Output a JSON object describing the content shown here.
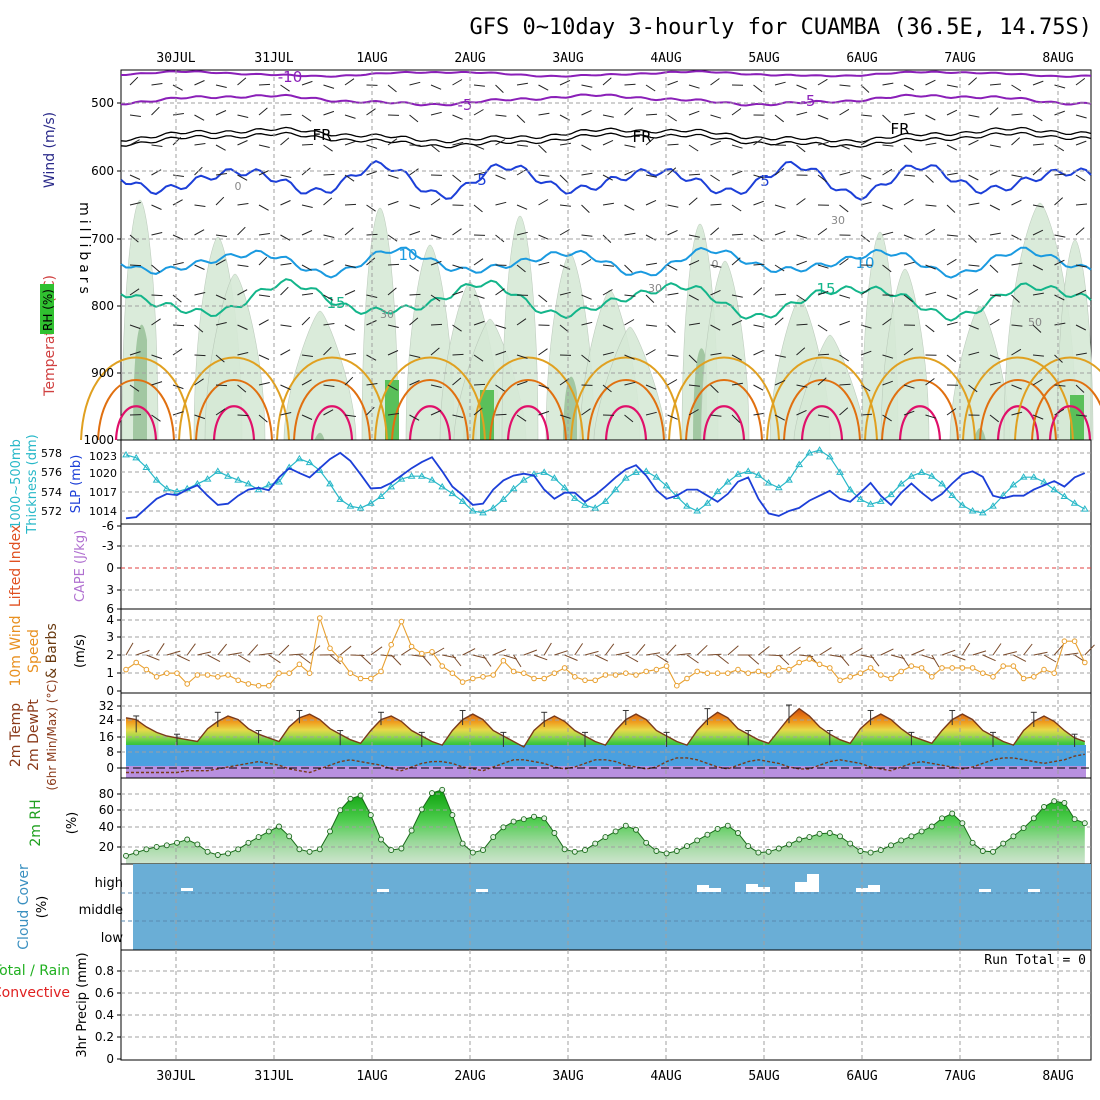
{
  "title": "GFS 0~10day 3-hourly for CUAMBA (36.5E, 14.75S)",
  "dates": [
    "30JUL",
    "31JUL",
    "1AUG",
    "2AUG",
    "3AUG",
    "4AUG",
    "5AUG",
    "6AUG",
    "7AUG",
    "8AUG"
  ],
  "colors": {
    "wind_m10": "#8a1fb8",
    "wind_m5": "#8a1fb8",
    "freeze": "#000000",
    "t5": "#1c3fd8",
    "t10": "#1a9ae0",
    "t15": "#13b58a",
    "t20": "#e0a020",
    "t25": "#e07010",
    "t30": "#e0106a",
    "rh_fill": "#cfe5cf",
    "thickness": "#28b8c8",
    "slp": "#1c3fd8",
    "wind10": "#e8a030",
    "temp": "#8a3a1a",
    "dew": "#8a3a1a",
    "rh2m": "#2a9a2a",
    "cloud": "#6aaed6",
    "grid": "#9a9a9a"
  },
  "panels": {
    "upper": {
      "ylabel_parts": [
        "Wind (m/s)",
        "Temperature (°C)",
        "RH (%)"
      ],
      "ylabel_right": "millibars",
      "yticks": [
        "500",
        "600",
        "700",
        "800",
        "900",
        "1000"
      ],
      "contour_labels": [
        "-10",
        "-5",
        "-5",
        "FR",
        "FR",
        "FR",
        "5",
        "5",
        "10",
        "10",
        "15",
        "15",
        "30",
        "30",
        "30",
        "50",
        "0",
        "0"
      ]
    },
    "thickness": {
      "ylabel1": "1000~500mb",
      "ylabel2": "Thickness (dm)",
      "ylabel3": "SLP (mb)",
      "left_ticks": [
        "578",
        "576",
        "574",
        "572"
      ],
      "right_ticks": [
        "1023",
        "1020",
        "1017",
        "1014"
      ]
    },
    "cape": {
      "ylabel1": "Lifted Index",
      "ylabel2": "CAPE (J/kg)",
      "ticks": [
        "-6",
        "-3",
        "0",
        "3",
        "6"
      ]
    },
    "wind10": {
      "ylabel1": "10m Wind",
      "ylabel2": "Speed",
      "ylabel3": "& Barbs",
      "ylabel4": "(m/s)",
      "ticks": [
        "4",
        "3",
        "2",
        "1",
        "0"
      ]
    },
    "temp": {
      "ylabel1": "2m Temp",
      "ylabel2": "2m DewPt",
      "ylabel3": "(6hr Min/Max) (°C)",
      "ticks": [
        "32",
        "24",
        "16",
        "8",
        "0"
      ]
    },
    "rh": {
      "ylabel1": "2m RH",
      "ylabel2": "(%)",
      "ticks": [
        "80",
        "60",
        "40",
        "20"
      ]
    },
    "cloud": {
      "ylabel1": "Cloud Cover",
      "ylabel2": "(%)",
      "levels": [
        "high",
        "middle",
        "low"
      ]
    },
    "precip": {
      "ylabel1": "Total / Rain",
      "ylabel2": "Convective",
      "ylabel3": "3hr Precip (mm)",
      "ticks": [
        "0.8",
        "0.6",
        "0.4",
        "0.2",
        "0"
      ],
      "run_total": "Run Total = 0"
    }
  },
  "chart_data": [
    {
      "type": "line",
      "title": "1000~500mb Thickness (dm)",
      "x_step_hours": 3,
      "series": [
        {
          "name": "1000~500mb Thickness (dm)",
          "values": [
            577.8,
            577.5,
            576.5,
            575.2,
            574.3,
            574.0,
            574.3,
            574.8,
            575.3,
            576.1,
            575.6,
            575.2,
            574.8,
            574.2,
            574.7,
            575.0,
            576.5,
            577.4,
            577.0,
            576.2,
            574.8,
            573.2,
            572.5,
            572.3,
            572.8,
            573.5,
            574.5,
            575.3,
            575.6,
            575.6,
            575.2,
            574.5,
            573.8,
            573.0,
            572.0,
            571.8,
            572.3,
            573.2,
            574.3,
            575.2,
            575.8,
            576.0,
            575.4,
            574.4,
            573.3,
            572.6,
            572.3,
            573.0,
            574.2,
            575.4,
            576.0,
            576.1,
            575.5,
            574.6,
            573.5,
            572.5,
            572.0,
            572.8,
            574.0,
            575.0,
            575.8,
            576.1,
            575.7,
            574.9,
            574.4,
            575.2,
            576.8,
            578.0,
            578.3,
            577.6,
            576.0,
            574.2,
            573.2,
            572.7,
            573.0,
            573.7,
            574.8,
            575.6,
            576.0,
            575.6,
            574.8,
            573.6,
            572.6,
            572.0,
            571.8,
            572.5,
            573.6,
            574.7,
            575.5,
            575.5,
            575.0,
            574.2,
            573.5,
            572.8,
            572.2
          ]
        }
      ]
    },
    {
      "type": "line",
      "title": "SLP (mb)",
      "x_step_hours": 3,
      "series": [
        {
          "name": "SLP (mb)",
          "values": [
            1012.8,
            1013.0,
            1014.5,
            1016.0,
            1016.8,
            1016.6,
            1017.5,
            1018.2,
            1016.5,
            1015.0,
            1015.2,
            1016.5,
            1017.5,
            1017.8,
            1017.4,
            1019.5,
            1021.0,
            1020.2,
            1019.5,
            1021.0,
            1022.5,
            1023.5,
            1022.2,
            1020.0,
            1017.7,
            1017.8,
            1018.6,
            1019.8,
            1021.0,
            1022.0,
            1022.8,
            1020.5,
            1018.0,
            1016.6,
            1015.0,
            1015.2,
            1017.5,
            1019.0,
            1019.8,
            1020.1,
            1019.8,
            1017.5,
            1016.0,
            1017.0,
            1017.0,
            1015.5,
            1016.6,
            1018.0,
            1019.5,
            1020.8,
            1021.5,
            1019.8,
            1017.4,
            1016.0,
            1016.5,
            1017.5,
            1017.5,
            1016.5,
            1015.5,
            1016.8,
            1018.8,
            1019.5,
            1016.0,
            1013.6,
            1013.2,
            1014.0,
            1014.5,
            1015.7,
            1016.5,
            1017.3,
            1016.0,
            1015.5,
            1017.0,
            1018.6,
            1016.5,
            1015.0,
            1017.0,
            1018.5,
            1017.0,
            1015.7,
            1016.8,
            1018.5,
            1020.0,
            1020.5,
            1019.6,
            1016.5,
            1016.1,
            1016.5,
            1016.5,
            1017.5,
            1018.2,
            1018.9,
            1018.0,
            1019.5,
            1020.2
          ]
        }
      ]
    },
    {
      "type": "line",
      "title": "10m Wind Speed (m/s)",
      "x_step_hours": 3,
      "series": [
        {
          "name": "10m Wind Speed",
          "values": [
            1.2,
            1.6,
            1.2,
            0.8,
            1.0,
            1.0,
            0.4,
            0.9,
            0.9,
            0.8,
            0.9,
            0.6,
            0.4,
            0.3,
            0.3,
            1.0,
            1.0,
            1.5,
            1.0,
            4.1,
            2.4,
            1.8,
            1.0,
            0.7,
            0.7,
            1.1,
            2.6,
            3.9,
            2.5,
            2.1,
            2.2,
            1.4,
            1.0,
            0.5,
            0.7,
            0.8,
            0.9,
            1.7,
            1.1,
            1.0,
            0.7,
            0.7,
            1.0,
            1.3,
            0.8,
            0.6,
            0.6,
            0.9,
            0.9,
            1.0,
            0.9,
            1.1,
            1.2,
            1.4,
            0.3,
            0.7,
            1.1,
            1.0,
            1.0,
            1.0,
            1.2,
            1.0,
            1.1,
            0.9,
            1.3,
            1.2,
            1.6,
            1.8,
            1.5,
            1.3,
            0.6,
            0.8,
            1.0,
            1.3,
            0.9,
            0.7,
            1.1,
            1.4,
            1.3,
            0.8,
            1.3,
            1.3,
            1.3,
            1.3,
            1.0,
            0.8,
            1.4,
            1.4,
            0.7,
            0.8,
            1.2,
            1.0,
            2.8,
            2.8,
            1.6
          ]
        }
      ]
    },
    {
      "type": "area",
      "title": "2m Temp (°C)",
      "x_step_hours": 3,
      "ylim": [
        -4,
        36
      ],
      "series": [
        {
          "name": "2m Temp",
          "values": [
            29,
            28,
            24,
            21,
            19,
            18,
            17,
            16,
            23,
            27,
            30,
            28,
            23,
            20,
            18,
            16,
            24,
            29,
            31,
            28,
            23,
            20,
            17,
            15,
            22,
            28,
            30,
            27,
            22,
            19,
            16,
            14,
            22,
            28,
            31,
            28,
            22,
            19,
            16,
            13,
            22,
            27,
            30,
            27,
            22,
            19,
            16,
            14,
            22,
            28,
            31,
            28,
            22,
            19,
            16,
            14,
            22,
            28,
            32,
            29,
            23,
            20,
            17,
            15,
            22,
            29,
            34,
            30,
            24,
            20,
            17,
            15,
            23,
            28,
            31,
            28,
            23,
            19,
            17,
            15,
            22,
            28,
            31,
            28,
            22,
            19,
            16,
            14,
            22,
            27,
            30,
            27,
            22,
            18,
            16
          ]
        },
        {
          "name": "2m DewPt",
          "values": [
            -1,
            -1,
            -1,
            -1,
            -1,
            -1,
            0,
            0,
            0,
            1,
            2,
            3,
            4,
            5,
            4,
            3,
            1,
            0,
            -1,
            1,
            3,
            5,
            6,
            5,
            4,
            3,
            1,
            0,
            2,
            4,
            5,
            5,
            4,
            2,
            1,
            0,
            2,
            4,
            6,
            6,
            5,
            4,
            2,
            1,
            2,
            4,
            6,
            6,
            5,
            3,
            2,
            1,
            2,
            5,
            7,
            7,
            6,
            4,
            2,
            1,
            3,
            5,
            6,
            5,
            4,
            2,
            1,
            1,
            3,
            5,
            6,
            5,
            4,
            2,
            1,
            0,
            2,
            4,
            5,
            4,
            3,
            2,
            1,
            2,
            4,
            6,
            7,
            7,
            6,
            5,
            4,
            5,
            6,
            8,
            9
          ]
        }
      ]
    },
    {
      "type": "area",
      "title": "2m RH (%)",
      "x_step_hours": 3,
      "ylim": [
        0,
        100
      ],
      "series": [
        {
          "name": "2m RH",
          "values": [
            10,
            14,
            18,
            21,
            23,
            26,
            30,
            24,
            15,
            11,
            13,
            18,
            26,
            33,
            40,
            46,
            34,
            18,
            15,
            18,
            40,
            66,
            80,
            84,
            60,
            30,
            17,
            19,
            41,
            67,
            87,
            91,
            60,
            25,
            14,
            17,
            33,
            45,
            52,
            55,
            58,
            56,
            38,
            18,
            15,
            17,
            25,
            33,
            40,
            47,
            42,
            26,
            16,
            13,
            16,
            22,
            29,
            36,
            43,
            47,
            38,
            22,
            14,
            15,
            19,
            24,
            30,
            33,
            37,
            38,
            34,
            25,
            16,
            14,
            17,
            23,
            29,
            34,
            40,
            46,
            56,
            62,
            50,
            26,
            16,
            15,
            25,
            34,
            44,
            56,
            70,
            77,
            75,
            55,
            50
          ]
        }
      ]
    },
    {
      "type": "bar",
      "title": "3hr Precip (mm)",
      "ylim": [
        0,
        0.95
      ],
      "values": []
    }
  ]
}
